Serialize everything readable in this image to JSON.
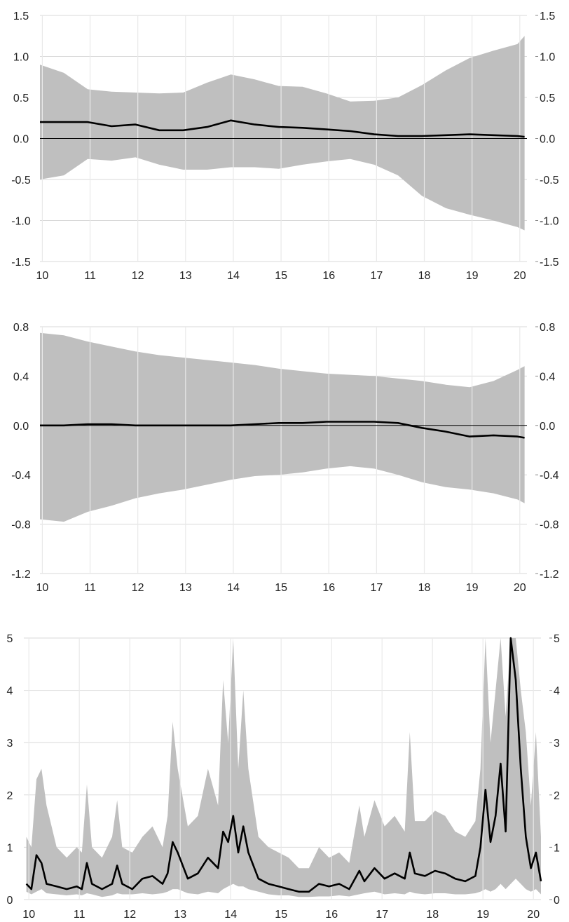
{
  "colors": {
    "band": "#bfbfbf",
    "line": "#000000",
    "grid": "#d9d9d9",
    "zero": "#000000",
    "text": "#222222"
  },
  "chart_data": [
    {
      "type": "area",
      "x_ticks": [
        "10",
        "11",
        "12",
        "13",
        "14",
        "15",
        "16",
        "17",
        "18",
        "19",
        "20"
      ],
      "ylim": [
        -1.5,
        1.5
      ],
      "y_ticks": [
        "1.5",
        "1.0",
        "0.5",
        "0.0",
        "-0.5",
        "-1.0",
        "-1.5"
      ],
      "y_tick_values": [
        1.5,
        1.0,
        0.5,
        0.0,
        -0.5,
        -1.0,
        -1.5
      ],
      "zero_line": true,
      "x": [
        10.0,
        10.5,
        11.0,
        11.5,
        12.0,
        12.5,
        13.0,
        13.5,
        14.0,
        14.5,
        15.0,
        15.5,
        16.0,
        16.5,
        17.0,
        17.5,
        18.0,
        18.5,
        19.0,
        19.5,
        20.0,
        20.15
      ],
      "upper": [
        0.9,
        0.8,
        0.6,
        0.57,
        0.56,
        0.55,
        0.56,
        0.68,
        0.78,
        0.72,
        0.64,
        0.63,
        0.55,
        0.45,
        0.46,
        0.5,
        0.65,
        0.83,
        0.98,
        1.07,
        1.15,
        1.25
      ],
      "lower": [
        -0.5,
        -0.45,
        -0.25,
        -0.27,
        -0.23,
        -0.32,
        -0.38,
        -0.38,
        -0.35,
        -0.35,
        -0.37,
        -0.32,
        -0.28,
        -0.25,
        -0.32,
        -0.45,
        -0.7,
        -0.85,
        -0.93,
        -1.0,
        -1.08,
        -1.12
      ],
      "mean": [
        0.2,
        0.2,
        0.2,
        0.15,
        0.17,
        0.1,
        0.1,
        0.14,
        0.22,
        0.17,
        0.14,
        0.13,
        0.11,
        0.09,
        0.05,
        0.03,
        0.03,
        0.04,
        0.05,
        0.04,
        0.03,
        0.02
      ]
    },
    {
      "type": "area",
      "x_ticks": [
        "10",
        "11",
        "12",
        "13",
        "14",
        "15",
        "16",
        "17",
        "18",
        "19",
        "20"
      ],
      "ylim": [
        -1.2,
        0.8
      ],
      "y_ticks": [
        "0.8",
        "0.4",
        "0.0",
        "-0.4",
        "-0.8",
        "-1.2"
      ],
      "y_tick_values": [
        0.8,
        0.4,
        0.0,
        -0.4,
        -0.8,
        -1.2
      ],
      "zero_line": true,
      "x": [
        10.0,
        10.5,
        11.0,
        11.5,
        12.0,
        12.5,
        13.0,
        13.5,
        14.0,
        14.5,
        15.0,
        15.5,
        16.0,
        16.5,
        17.0,
        17.5,
        18.0,
        18.5,
        19.0,
        19.5,
        20.0,
        20.15
      ],
      "upper": [
        0.75,
        0.73,
        0.68,
        0.64,
        0.6,
        0.57,
        0.55,
        0.53,
        0.51,
        0.49,
        0.46,
        0.44,
        0.42,
        0.41,
        0.4,
        0.38,
        0.36,
        0.33,
        0.31,
        0.36,
        0.45,
        0.48
      ],
      "lower": [
        -0.76,
        -0.78,
        -0.7,
        -0.65,
        -0.59,
        -0.55,
        -0.52,
        -0.48,
        -0.44,
        -0.41,
        -0.4,
        -0.38,
        -0.35,
        -0.33,
        -0.35,
        -0.4,
        -0.46,
        -0.5,
        -0.52,
        -0.55,
        -0.6,
        -0.63
      ],
      "mean": [
        0.0,
        0.0,
        0.01,
        0.01,
        0.0,
        0.0,
        0.0,
        0.0,
        0.0,
        0.01,
        0.02,
        0.02,
        0.03,
        0.03,
        0.03,
        0.02,
        -0.02,
        -0.05,
        -0.09,
        -0.08,
        -0.09,
        -0.1
      ]
    },
    {
      "type": "area",
      "x_ticks": [
        "10",
        "11",
        "12",
        "13",
        "14",
        "15",
        "16",
        "17",
        "18",
        "19",
        "20"
      ],
      "ylim": [
        0,
        5
      ],
      "y_ticks": [
        "5",
        "4",
        "3",
        "2",
        "1",
        "0"
      ],
      "y_tick_values": [
        5,
        4,
        3,
        2,
        1,
        0
      ],
      "zero_line": false,
      "x": [
        10.0,
        10.1,
        10.2,
        10.3,
        10.4,
        10.6,
        10.8,
        11.0,
        11.1,
        11.2,
        11.3,
        11.5,
        11.7,
        11.8,
        11.9,
        12.1,
        12.3,
        12.5,
        12.7,
        12.8,
        12.9,
        13.0,
        13.2,
        13.4,
        13.6,
        13.8,
        13.9,
        14.0,
        14.1,
        14.2,
        14.3,
        14.4,
        14.6,
        14.8,
        15.0,
        15.2,
        15.4,
        15.6,
        15.8,
        16.0,
        16.2,
        16.4,
        16.6,
        16.7,
        16.9,
        17.1,
        17.3,
        17.5,
        17.6,
        17.7,
        17.9,
        18.1,
        18.3,
        18.5,
        18.7,
        18.9,
        19.0,
        19.1,
        19.2,
        19.3,
        19.4,
        19.5,
        19.6,
        19.7,
        19.8,
        19.9,
        20.0,
        20.1,
        20.2
      ],
      "upper": [
        1.2,
        1.0,
        2.3,
        2.5,
        1.8,
        1.0,
        0.8,
        1.0,
        0.9,
        2.2,
        1.0,
        0.8,
        1.2,
        1.9,
        1.0,
        0.9,
        1.2,
        1.4,
        1.0,
        1.6,
        3.4,
        2.5,
        1.4,
        1.6,
        2.5,
        1.8,
        4.2,
        3.0,
        5.0,
        2.5,
        4.0,
        2.5,
        1.2,
        1.0,
        0.9,
        0.8,
        0.6,
        0.6,
        1.0,
        0.8,
        0.9,
        0.7,
        1.8,
        1.2,
        1.9,
        1.4,
        1.6,
        1.3,
        3.2,
        1.5,
        1.5,
        1.7,
        1.6,
        1.3,
        1.2,
        1.5,
        2.5,
        5.0,
        3.0,
        4.0,
        5.0,
        3.5,
        5.0,
        5.0,
        4.0,
        3.2,
        1.8,
        3.2,
        1.2
      ],
      "lower": [
        0.15,
        0.1,
        0.15,
        0.2,
        0.12,
        0.1,
        0.08,
        0.1,
        0.08,
        0.12,
        0.1,
        0.05,
        0.08,
        0.12,
        0.1,
        0.1,
        0.12,
        0.1,
        0.12,
        0.15,
        0.2,
        0.2,
        0.12,
        0.1,
        0.15,
        0.12,
        0.2,
        0.25,
        0.3,
        0.25,
        0.25,
        0.2,
        0.15,
        0.1,
        0.08,
        0.08,
        0.05,
        0.05,
        0.06,
        0.06,
        0.08,
        0.06,
        0.1,
        0.12,
        0.15,
        0.1,
        0.12,
        0.1,
        0.15,
        0.12,
        0.1,
        0.12,
        0.12,
        0.1,
        0.1,
        0.12,
        0.15,
        0.2,
        0.15,
        0.2,
        0.3,
        0.2,
        0.3,
        0.4,
        0.3,
        0.2,
        0.15,
        0.2,
        0.1
      ],
      "mean": [
        0.3,
        0.2,
        0.85,
        0.7,
        0.3,
        0.25,
        0.2,
        0.25,
        0.2,
        0.7,
        0.3,
        0.2,
        0.3,
        0.65,
        0.3,
        0.2,
        0.4,
        0.45,
        0.3,
        0.5,
        1.1,
        0.9,
        0.4,
        0.5,
        0.8,
        0.6,
        1.3,
        1.1,
        1.6,
        0.9,
        1.4,
        0.9,
        0.4,
        0.3,
        0.25,
        0.2,
        0.15,
        0.15,
        0.3,
        0.25,
        0.3,
        0.2,
        0.55,
        0.35,
        0.6,
        0.4,
        0.5,
        0.4,
        0.9,
        0.5,
        0.45,
        0.55,
        0.5,
        0.4,
        0.35,
        0.45,
        1.0,
        2.1,
        1.1,
        1.6,
        2.6,
        1.3,
        5.0,
        4.2,
        2.5,
        1.2,
        0.6,
        0.9,
        0.35
      ]
    }
  ]
}
